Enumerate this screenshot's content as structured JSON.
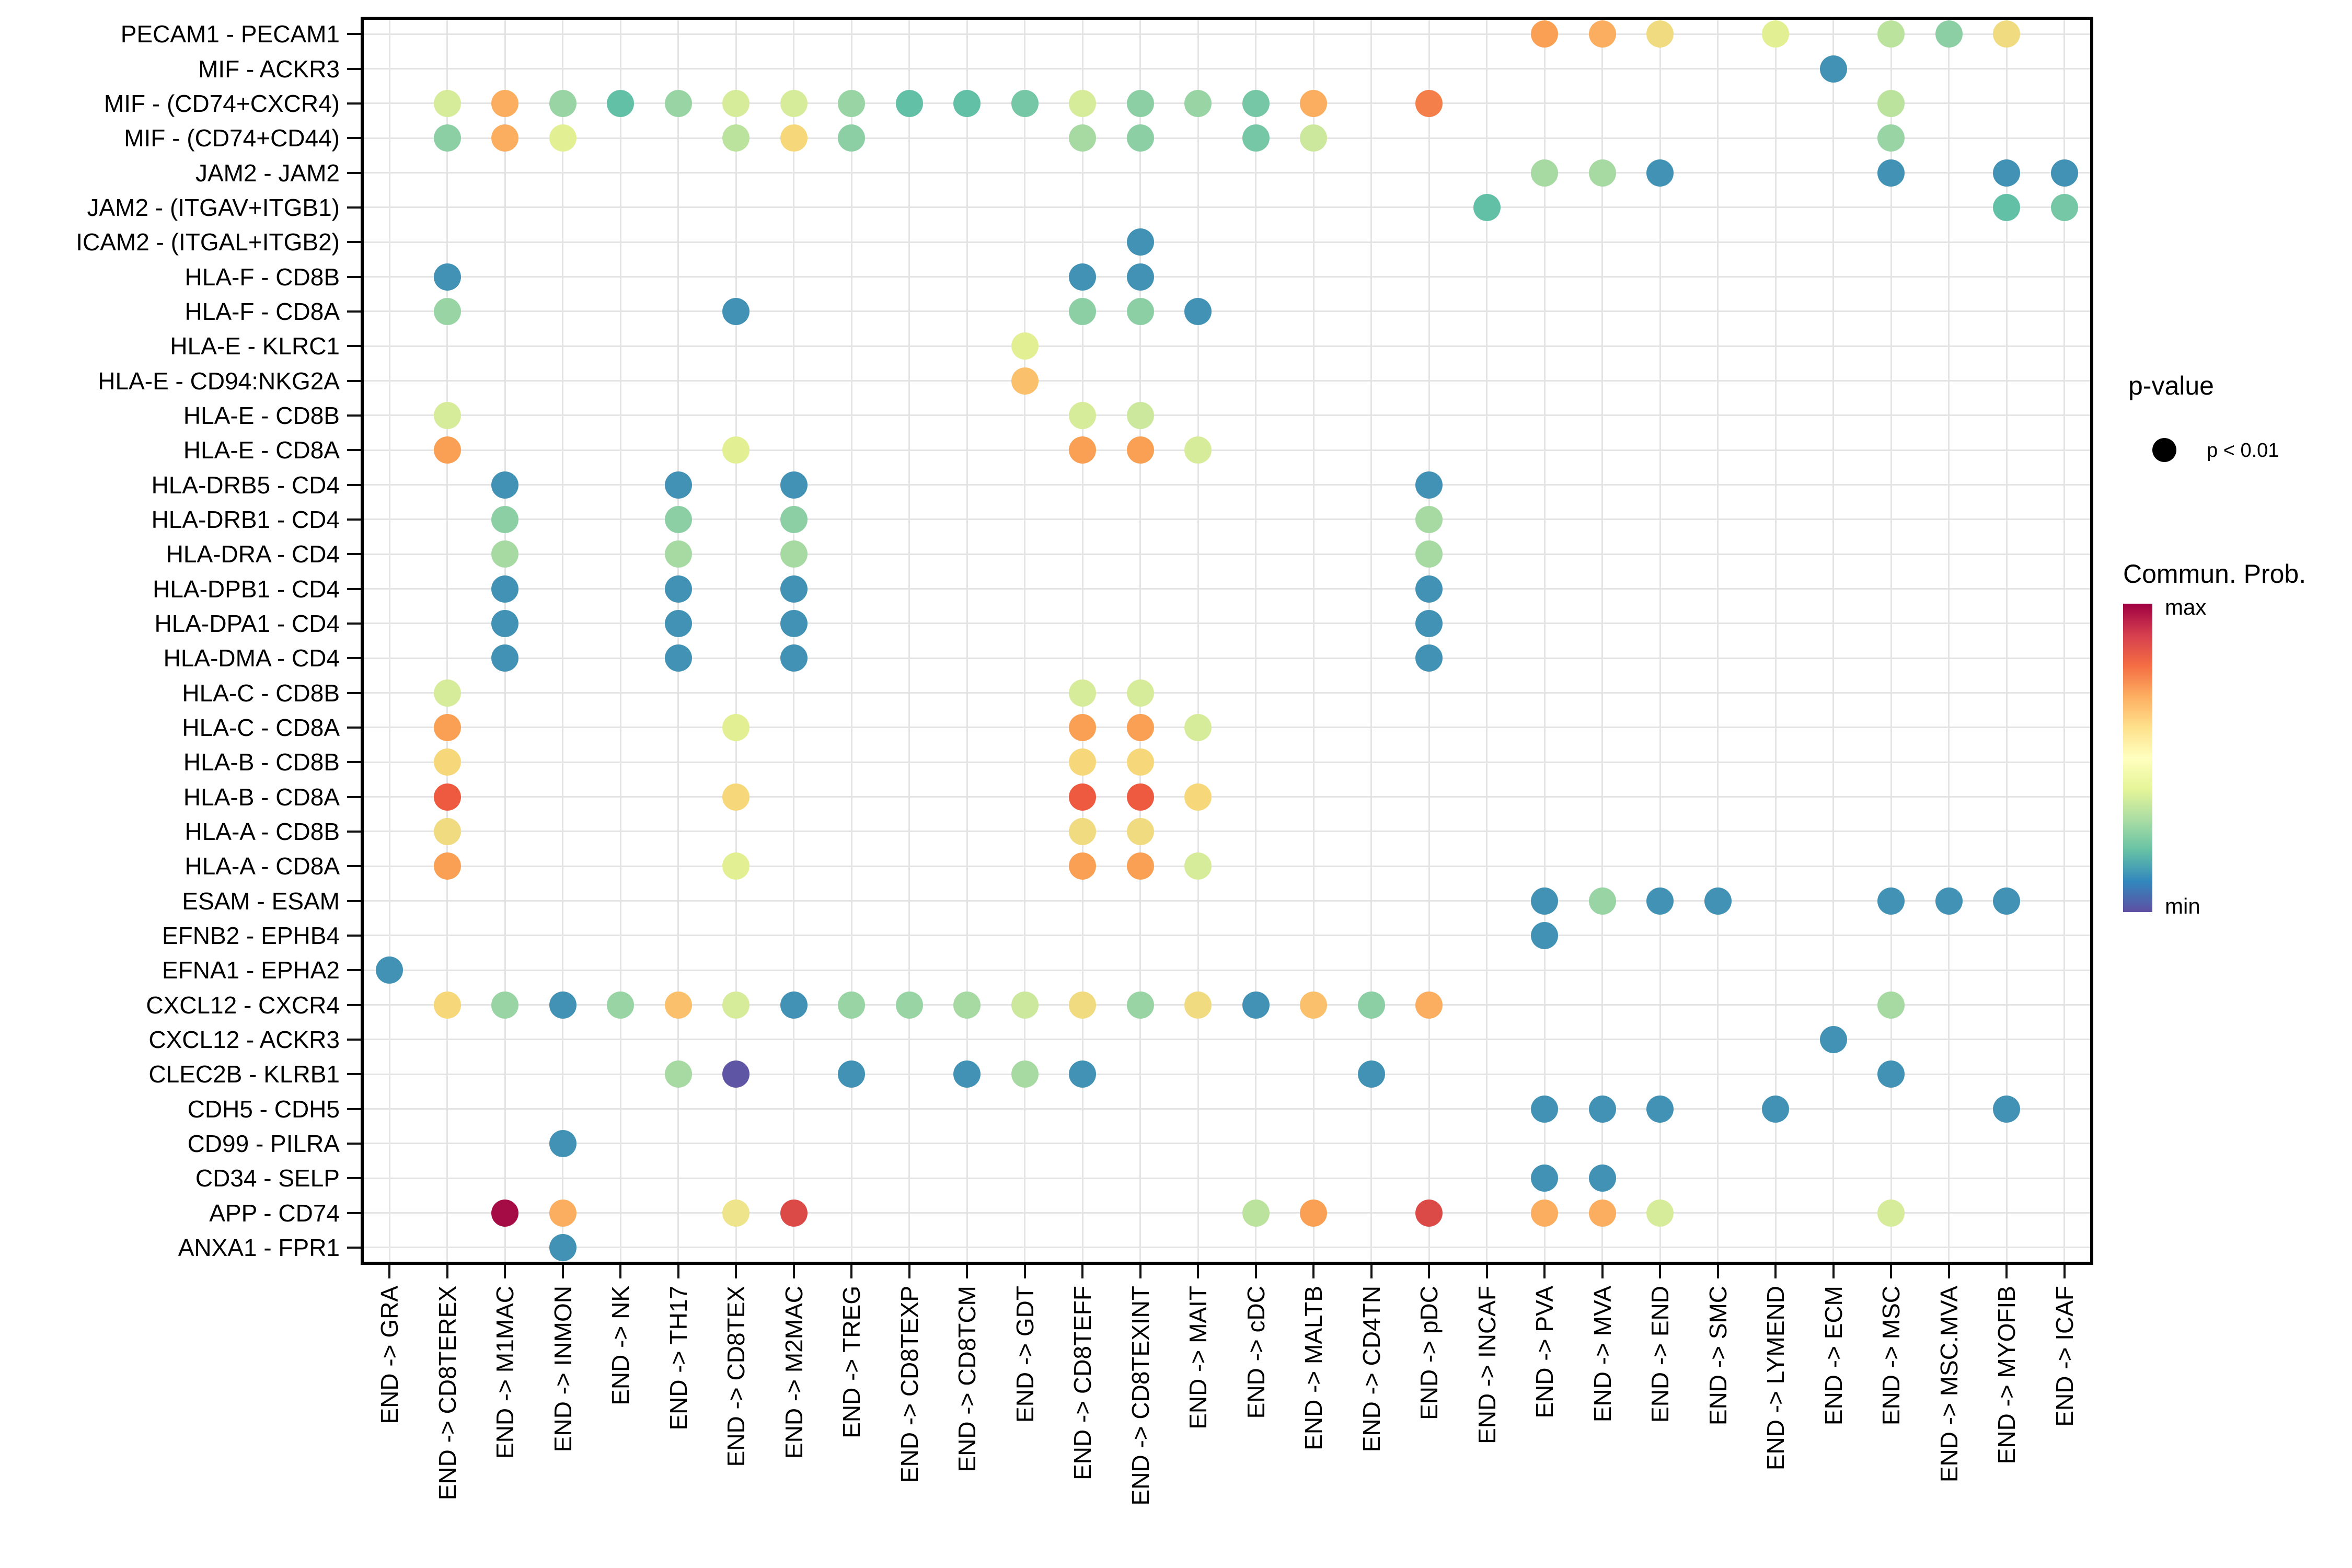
{
  "chart_data": {
    "type": "bubble",
    "title": "",
    "xlabel": "",
    "ylabel": "",
    "grid": true,
    "x_labels": [
      "END -> GRA",
      "END -> CD8TEREX",
      "END -> M1MAC",
      "END -> INMON",
      "END -> NK",
      "END -> TH17",
      "END -> CD8TEX",
      "END -> M2MAC",
      "END -> TREG",
      "END -> CD8TEXP",
      "END -> CD8TCM",
      "END -> GDT",
      "END -> CD8TEFF",
      "END -> CD8TEXINT",
      "END -> MAIT",
      "END -> cDC",
      "END -> MALTB",
      "END -> CD4TN",
      "END -> pDC",
      "END -> INCAF",
      "END -> PVA",
      "END -> MVA",
      "END -> END",
      "END -> SMC",
      "END -> LYMEND",
      "END -> ECM",
      "END -> MSC",
      "END -> MSC.MVA",
      "END -> MYOFIB",
      "END -> ICAF"
    ],
    "y_labels": [
      "PECAM1 - PECAM1",
      "MIF - ACKR3",
      "MIF - (CD74+CXCR4)",
      "MIF - (CD74+CD44)",
      "JAM2 - JAM2",
      "JAM2 - (ITGAV+ITGB1)",
      "ICAM2 - (ITGAL+ITGB2)",
      "HLA-F - CD8B",
      "HLA-F - CD8A",
      "HLA-E - KLRC1",
      "HLA-E - CD94:NKG2A",
      "HLA-E - CD8B",
      "HLA-E - CD8A",
      "HLA-DRB5 - CD4",
      "HLA-DRB1 - CD4",
      "HLA-DRA - CD4",
      "HLA-DPB1 - CD4",
      "HLA-DPA1 - CD4",
      "HLA-DMA - CD4",
      "HLA-C - CD8B",
      "HLA-C - CD8A",
      "HLA-B - CD8B",
      "HLA-B - CD8A",
      "HLA-A - CD8B",
      "HLA-A - CD8A",
      "ESAM - ESAM",
      "EFNB2 - EPHB4",
      "EFNA1 - EPHA2",
      "CXCL12 - CXCR4",
      "CXCL12 - ACKR3",
      "CLEC2B - KLRB1",
      "CDH5 - CDH5",
      "CD99 - PILRA",
      "CD34 - SELP",
      "APP - CD74",
      "ANXA1 - FPR1"
    ],
    "palette": {
      "maroon": "#A50B44",
      "red": "#DC4A47",
      "redorange": "#EE5A40",
      "deeporange": "#F57F4B",
      "orange": "#FBAD60",
      "orange2": "#F9A055",
      "orangeyellow": "#FBC06B",
      "yellow": "#F0DB81",
      "yellow2": "#F6D87A",
      "paleyellow": "#EDE48C",
      "paleyellowgreen": "#E2F093",
      "lightyellowgreen": "#D7EC9A",
      "yellowgreen": "#CBE89C",
      "lightgreen": "#BCE39E",
      "greenlight": "#A7DAA3",
      "green": "#98D4A4",
      "greenmed": "#8CCFA4",
      "teal2": "#75C7A5",
      "teal": "#62C0A6",
      "blue": "#4292B5",
      "purple": "#5F55A5"
    },
    "points": [
      {
        "r": 0,
        "c": 20,
        "k": "orange2"
      },
      {
        "r": 0,
        "c": 21,
        "k": "orange"
      },
      {
        "r": 0,
        "c": 22,
        "k": "yellow"
      },
      {
        "r": 0,
        "c": 24,
        "k": "paleyellowgreen"
      },
      {
        "r": 0,
        "c": 26,
        "k": "lightgreen"
      },
      {
        "r": 0,
        "c": 27,
        "k": "greenmed"
      },
      {
        "r": 0,
        "c": 28,
        "k": "yellow"
      },
      {
        "r": 1,
        "c": 25,
        "k": "blue"
      },
      {
        "r": 2,
        "c": 1,
        "k": "lightyellowgreen"
      },
      {
        "r": 2,
        "c": 2,
        "k": "orange"
      },
      {
        "r": 2,
        "c": 3,
        "k": "green"
      },
      {
        "r": 2,
        "c": 4,
        "k": "teal"
      },
      {
        "r": 2,
        "c": 5,
        "k": "green"
      },
      {
        "r": 2,
        "c": 6,
        "k": "lightyellowgreen"
      },
      {
        "r": 2,
        "c": 7,
        "k": "lightyellowgreen"
      },
      {
        "r": 2,
        "c": 8,
        "k": "green"
      },
      {
        "r": 2,
        "c": 9,
        "k": "teal"
      },
      {
        "r": 2,
        "c": 10,
        "k": "teal"
      },
      {
        "r": 2,
        "c": 11,
        "k": "teal2"
      },
      {
        "r": 2,
        "c": 12,
        "k": "lightyellowgreen"
      },
      {
        "r": 2,
        "c": 13,
        "k": "greenmed"
      },
      {
        "r": 2,
        "c": 14,
        "k": "green"
      },
      {
        "r": 2,
        "c": 15,
        "k": "teal2"
      },
      {
        "r": 2,
        "c": 16,
        "k": "orange"
      },
      {
        "r": 2,
        "c": 18,
        "k": "deeporange"
      },
      {
        "r": 2,
        "c": 26,
        "k": "lightgreen"
      },
      {
        "r": 3,
        "c": 1,
        "k": "greenmed"
      },
      {
        "r": 3,
        "c": 2,
        "k": "orange"
      },
      {
        "r": 3,
        "c": 3,
        "k": "paleyellowgreen"
      },
      {
        "r": 3,
        "c": 6,
        "k": "lightgreen"
      },
      {
        "r": 3,
        "c": 7,
        "k": "yellow2"
      },
      {
        "r": 3,
        "c": 8,
        "k": "greenmed"
      },
      {
        "r": 3,
        "c": 12,
        "k": "greenlight"
      },
      {
        "r": 3,
        "c": 13,
        "k": "greenmed"
      },
      {
        "r": 3,
        "c": 15,
        "k": "teal2"
      },
      {
        "r": 3,
        "c": 16,
        "k": "yellowgreen"
      },
      {
        "r": 3,
        "c": 26,
        "k": "green"
      },
      {
        "r": 4,
        "c": 20,
        "k": "greenlight"
      },
      {
        "r": 4,
        "c": 21,
        "k": "greenlight"
      },
      {
        "r": 4,
        "c": 22,
        "k": "blue"
      },
      {
        "r": 4,
        "c": 26,
        "k": "blue"
      },
      {
        "r": 4,
        "c": 28,
        "k": "blue"
      },
      {
        "r": 4,
        "c": 29,
        "k": "blue"
      },
      {
        "r": 5,
        "c": 19,
        "k": "teal"
      },
      {
        "r": 5,
        "c": 28,
        "k": "teal"
      },
      {
        "r": 5,
        "c": 29,
        "k": "teal2"
      },
      {
        "r": 6,
        "c": 13,
        "k": "blue"
      },
      {
        "r": 7,
        "c": 1,
        "k": "blue"
      },
      {
        "r": 7,
        "c": 12,
        "k": "blue"
      },
      {
        "r": 7,
        "c": 13,
        "k": "blue"
      },
      {
        "r": 8,
        "c": 1,
        "k": "green"
      },
      {
        "r": 8,
        "c": 6,
        "k": "blue"
      },
      {
        "r": 8,
        "c": 12,
        "k": "greenmed"
      },
      {
        "r": 8,
        "c": 13,
        "k": "greenmed"
      },
      {
        "r": 8,
        "c": 14,
        "k": "blue"
      },
      {
        "r": 9,
        "c": 11,
        "k": "paleyellowgreen"
      },
      {
        "r": 10,
        "c": 11,
        "k": "orangeyellow"
      },
      {
        "r": 11,
        "c": 1,
        "k": "lightyellowgreen"
      },
      {
        "r": 11,
        "c": 12,
        "k": "lightyellowgreen"
      },
      {
        "r": 11,
        "c": 13,
        "k": "yellowgreen"
      },
      {
        "r": 12,
        "c": 1,
        "k": "orange2"
      },
      {
        "r": 12,
        "c": 6,
        "k": "paleyellowgreen"
      },
      {
        "r": 12,
        "c": 12,
        "k": "orange2"
      },
      {
        "r": 12,
        "c": 13,
        "k": "orange2"
      },
      {
        "r": 12,
        "c": 14,
        "k": "lightyellowgreen"
      },
      {
        "r": 13,
        "c": 2,
        "k": "blue"
      },
      {
        "r": 13,
        "c": 5,
        "k": "blue"
      },
      {
        "r": 13,
        "c": 7,
        "k": "blue"
      },
      {
        "r": 13,
        "c": 18,
        "k": "blue"
      },
      {
        "r": 14,
        "c": 2,
        "k": "greenmed"
      },
      {
        "r": 14,
        "c": 5,
        "k": "greenmed"
      },
      {
        "r": 14,
        "c": 7,
        "k": "greenmed"
      },
      {
        "r": 14,
        "c": 18,
        "k": "greenlight"
      },
      {
        "r": 15,
        "c": 2,
        "k": "greenlight"
      },
      {
        "r": 15,
        "c": 5,
        "k": "greenlight"
      },
      {
        "r": 15,
        "c": 7,
        "k": "greenlight"
      },
      {
        "r": 15,
        "c": 18,
        "k": "greenlight"
      },
      {
        "r": 16,
        "c": 2,
        "k": "blue"
      },
      {
        "r": 16,
        "c": 5,
        "k": "blue"
      },
      {
        "r": 16,
        "c": 7,
        "k": "blue"
      },
      {
        "r": 16,
        "c": 18,
        "k": "blue"
      },
      {
        "r": 17,
        "c": 2,
        "k": "blue"
      },
      {
        "r": 17,
        "c": 5,
        "k": "blue"
      },
      {
        "r": 17,
        "c": 7,
        "k": "blue"
      },
      {
        "r": 17,
        "c": 18,
        "k": "blue"
      },
      {
        "r": 18,
        "c": 2,
        "k": "blue"
      },
      {
        "r": 18,
        "c": 5,
        "k": "blue"
      },
      {
        "r": 18,
        "c": 7,
        "k": "blue"
      },
      {
        "r": 18,
        "c": 18,
        "k": "blue"
      },
      {
        "r": 19,
        "c": 1,
        "k": "lightyellowgreen"
      },
      {
        "r": 19,
        "c": 12,
        "k": "lightyellowgreen"
      },
      {
        "r": 19,
        "c": 13,
        "k": "lightyellowgreen"
      },
      {
        "r": 20,
        "c": 1,
        "k": "orange2"
      },
      {
        "r": 20,
        "c": 6,
        "k": "paleyellowgreen"
      },
      {
        "r": 20,
        "c": 12,
        "k": "orange2"
      },
      {
        "r": 20,
        "c": 13,
        "k": "orange2"
      },
      {
        "r": 20,
        "c": 14,
        "k": "lightyellowgreen"
      },
      {
        "r": 21,
        "c": 1,
        "k": "yellow2"
      },
      {
        "r": 21,
        "c": 12,
        "k": "yellow2"
      },
      {
        "r": 21,
        "c": 13,
        "k": "yellow2"
      },
      {
        "r": 22,
        "c": 1,
        "k": "redorange"
      },
      {
        "r": 22,
        "c": 6,
        "k": "yellow2"
      },
      {
        "r": 22,
        "c": 12,
        "k": "redorange"
      },
      {
        "r": 22,
        "c": 13,
        "k": "redorange"
      },
      {
        "r": 22,
        "c": 14,
        "k": "yellow2"
      },
      {
        "r": 23,
        "c": 1,
        "k": "yellow"
      },
      {
        "r": 23,
        "c": 12,
        "k": "yellow"
      },
      {
        "r": 23,
        "c": 13,
        "k": "yellow"
      },
      {
        "r": 24,
        "c": 1,
        "k": "orange2"
      },
      {
        "r": 24,
        "c": 6,
        "k": "paleyellowgreen"
      },
      {
        "r": 24,
        "c": 12,
        "k": "orange2"
      },
      {
        "r": 24,
        "c": 13,
        "k": "orange2"
      },
      {
        "r": 24,
        "c": 14,
        "k": "lightyellowgreen"
      },
      {
        "r": 25,
        "c": 20,
        "k": "blue"
      },
      {
        "r": 25,
        "c": 21,
        "k": "green"
      },
      {
        "r": 25,
        "c": 22,
        "k": "blue"
      },
      {
        "r": 25,
        "c": 23,
        "k": "blue"
      },
      {
        "r": 25,
        "c": 26,
        "k": "blue"
      },
      {
        "r": 25,
        "c": 27,
        "k": "blue"
      },
      {
        "r": 25,
        "c": 28,
        "k": "blue"
      },
      {
        "r": 26,
        "c": 20,
        "k": "blue"
      },
      {
        "r": 27,
        "c": 0,
        "k": "blue"
      },
      {
        "r": 28,
        "c": 1,
        "k": "yellow2"
      },
      {
        "r": 28,
        "c": 2,
        "k": "green"
      },
      {
        "r": 28,
        "c": 3,
        "k": "blue"
      },
      {
        "r": 28,
        "c": 4,
        "k": "green"
      },
      {
        "r": 28,
        "c": 5,
        "k": "orangeyellow"
      },
      {
        "r": 28,
        "c": 6,
        "k": "lightyellowgreen"
      },
      {
        "r": 28,
        "c": 7,
        "k": "blue"
      },
      {
        "r": 28,
        "c": 8,
        "k": "green"
      },
      {
        "r": 28,
        "c": 9,
        "k": "green"
      },
      {
        "r": 28,
        "c": 10,
        "k": "greenlight"
      },
      {
        "r": 28,
        "c": 11,
        "k": "yellowgreen"
      },
      {
        "r": 28,
        "c": 12,
        "k": "yellow"
      },
      {
        "r": 28,
        "c": 13,
        "k": "green"
      },
      {
        "r": 28,
        "c": 14,
        "k": "yellow"
      },
      {
        "r": 28,
        "c": 15,
        "k": "blue"
      },
      {
        "r": 28,
        "c": 16,
        "k": "orangeyellow"
      },
      {
        "r": 28,
        "c": 17,
        "k": "greenmed"
      },
      {
        "r": 28,
        "c": 18,
        "k": "orange"
      },
      {
        "r": 28,
        "c": 26,
        "k": "greenlight"
      },
      {
        "r": 29,
        "c": 25,
        "k": "blue"
      },
      {
        "r": 30,
        "c": 5,
        "k": "greenlight"
      },
      {
        "r": 30,
        "c": 6,
        "k": "purple"
      },
      {
        "r": 30,
        "c": 8,
        "k": "blue"
      },
      {
        "r": 30,
        "c": 10,
        "k": "blue"
      },
      {
        "r": 30,
        "c": 11,
        "k": "greenlight"
      },
      {
        "r": 30,
        "c": 12,
        "k": "blue"
      },
      {
        "r": 30,
        "c": 17,
        "k": "blue"
      },
      {
        "r": 30,
        "c": 26,
        "k": "blue"
      },
      {
        "r": 31,
        "c": 20,
        "k": "blue"
      },
      {
        "r": 31,
        "c": 21,
        "k": "blue"
      },
      {
        "r": 31,
        "c": 22,
        "k": "blue"
      },
      {
        "r": 31,
        "c": 24,
        "k": "blue"
      },
      {
        "r": 31,
        "c": 28,
        "k": "blue"
      },
      {
        "r": 32,
        "c": 3,
        "k": "blue"
      },
      {
        "r": 33,
        "c": 20,
        "k": "blue"
      },
      {
        "r": 33,
        "c": 21,
        "k": "blue"
      },
      {
        "r": 34,
        "c": 2,
        "k": "maroon"
      },
      {
        "r": 34,
        "c": 3,
        "k": "orange"
      },
      {
        "r": 34,
        "c": 6,
        "k": "paleyellow"
      },
      {
        "r": 34,
        "c": 7,
        "k": "red"
      },
      {
        "r": 34,
        "c": 15,
        "k": "lightgreen"
      },
      {
        "r": 34,
        "c": 16,
        "k": "orange2"
      },
      {
        "r": 34,
        "c": 18,
        "k": "red"
      },
      {
        "r": 34,
        "c": 20,
        "k": "orange"
      },
      {
        "r": 34,
        "c": 21,
        "k": "orange"
      },
      {
        "r": 34,
        "c": 22,
        "k": "lightyellowgreen"
      },
      {
        "r": 34,
        "c": 26,
        "k": "lightyellowgreen"
      },
      {
        "r": 35,
        "c": 3,
        "k": "blue"
      }
    ],
    "legend": {
      "pvalue_title": "p-value",
      "pvalue_item": "p < 0.01",
      "prob_title": "Commun. Prob.",
      "max_label": "max",
      "min_label": "min",
      "colorbar_stops": [
        "#9E0142",
        "#D53E4F",
        "#F46D43",
        "#FDAE61",
        "#FEE08B",
        "#FFFFBF",
        "#E6F598",
        "#ABDDA4",
        "#66C2A5",
        "#3288BD",
        "#5E4FA2"
      ]
    }
  }
}
